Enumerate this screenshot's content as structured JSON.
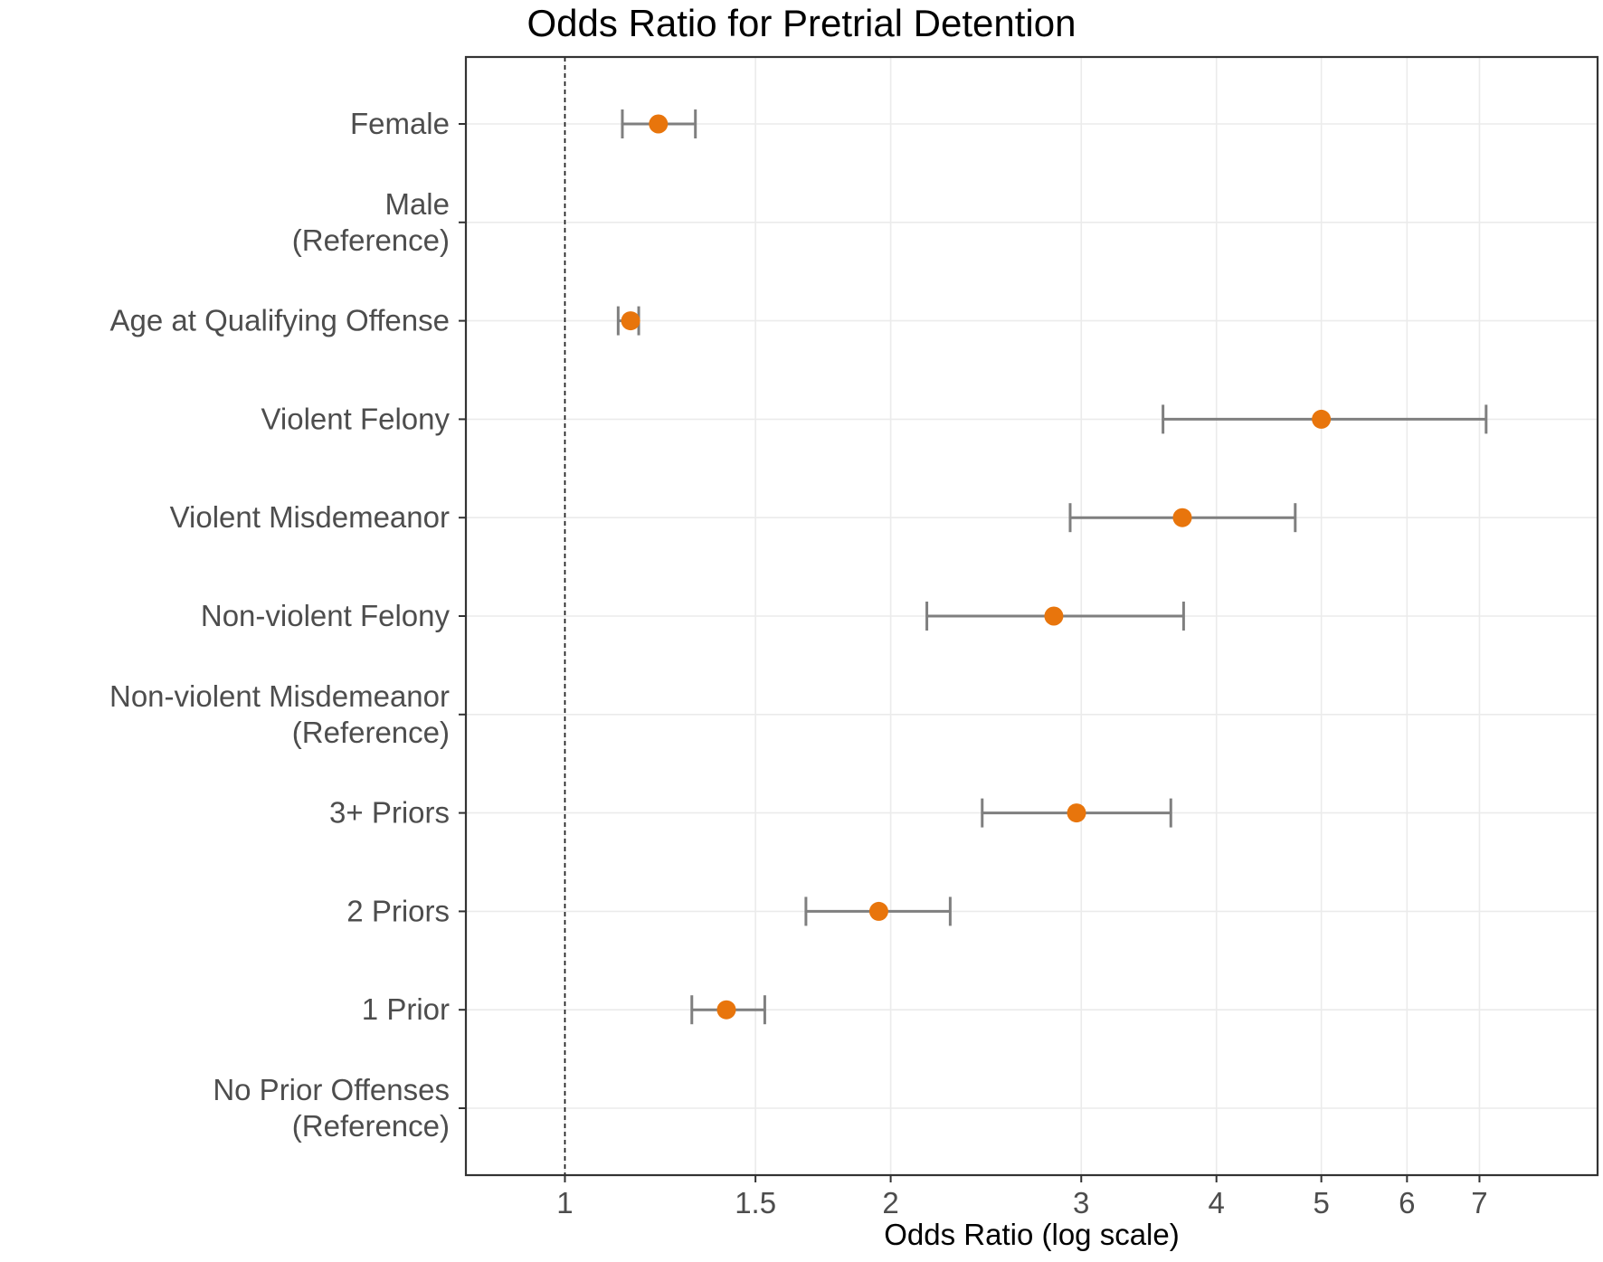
{
  "chart_data": {
    "type": "scatter",
    "subtype": "forest-plot-odds-ratios",
    "title": "Odds Ratio for Pretrial Detention",
    "xlabel": "Odds Ratio (log scale)",
    "ylabel": "",
    "x_scale": "log10",
    "x_domain": [
      0.81,
      9.0
    ],
    "x_ticks": [
      1,
      1.5,
      2,
      3,
      4,
      5,
      6,
      7
    ],
    "reference_line_x": 1,
    "grid": "on",
    "legend": "none",
    "rows": [
      {
        "label_lines": [
          "Female"
        ],
        "or": 1.22,
        "ci_low": 1.13,
        "ci_high": 1.32
      },
      {
        "label_lines": [
          "Male",
          "(Reference)"
        ],
        "or": null,
        "ci_low": null,
        "ci_high": null
      },
      {
        "label_lines": [
          "Age at Qualifying Offense"
        ],
        "or": 1.15,
        "ci_low": 1.12,
        "ci_high": 1.17
      },
      {
        "label_lines": [
          "Violent Felony"
        ],
        "or": 5.0,
        "ci_low": 3.57,
        "ci_high": 7.1
      },
      {
        "label_lines": [
          "Violent Misdemeanor"
        ],
        "or": 3.72,
        "ci_low": 2.93,
        "ci_high": 4.73
      },
      {
        "label_lines": [
          "Non-violent Felony"
        ],
        "or": 2.83,
        "ci_low": 2.16,
        "ci_high": 3.73
      },
      {
        "label_lines": [
          "Non-violent Misdemeanor",
          "(Reference)"
        ],
        "or": null,
        "ci_low": null,
        "ci_high": null
      },
      {
        "label_lines": [
          "3+ Priors"
        ],
        "or": 2.97,
        "ci_low": 2.43,
        "ci_high": 3.63
      },
      {
        "label_lines": [
          "2 Priors"
        ],
        "or": 1.95,
        "ci_low": 1.67,
        "ci_high": 2.27
      },
      {
        "label_lines": [
          "1 Prior"
        ],
        "or": 1.41,
        "ci_low": 1.31,
        "ci_high": 1.53
      },
      {
        "label_lines": [
          "No Prior Offenses",
          "(Reference)"
        ],
        "or": null,
        "ci_low": null,
        "ci_high": null
      }
    ],
    "colors": {
      "point": "#E8750C",
      "error_bar": "#7F7F7F",
      "grid": "#EBEBEB",
      "panel_border": "#333333",
      "axis_text": "#4D4D4D",
      "reference_line": "#1A1A1A",
      "title_text": "#000000",
      "background": "#FFFFFF"
    }
  }
}
